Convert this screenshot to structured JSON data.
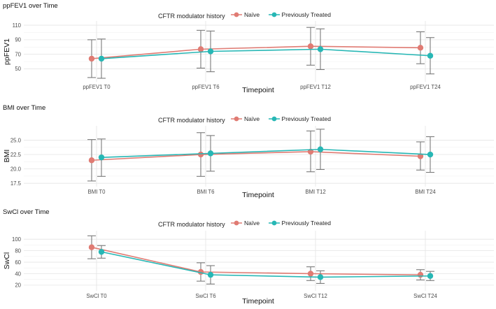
{
  "legend": {
    "title": "CFTR modulator history",
    "series": [
      {
        "name": "Naïve",
        "color": "#e07b73"
      },
      {
        "name": "Previously Treated",
        "color": "#27b7b5"
      }
    ]
  },
  "chart_data": [
    {
      "type": "line",
      "title": "ppFEV1 over Time",
      "xlabel": "Timepoint",
      "ylabel": "ppFEV1",
      "categories": [
        "ppFEV1 T0",
        "ppFEV1 T6",
        "ppFEV1 T12",
        "ppFEV1 T24"
      ],
      "ylim": [
        36,
        112
      ],
      "yticks": [
        50,
        70,
        90,
        110
      ],
      "series": [
        {
          "name": "Naïve",
          "color": "#e07b73",
          "values": [
            64,
            77,
            81,
            79
          ],
          "lower": [
            38,
            51,
            55,
            57
          ],
          "upper": [
            90,
            103,
            107,
            101
          ]
        },
        {
          "name": "Previously Treated",
          "color": "#27b7b5",
          "values": [
            64,
            74,
            77,
            68
          ],
          "lower": [
            37,
            46,
            49,
            43
          ],
          "upper": [
            91,
            102,
            105,
            93
          ]
        }
      ]
    },
    {
      "type": "line",
      "title": "BMI over Time",
      "xlabel": "Timepoint",
      "ylabel": "BMI",
      "categories": [
        "BMI T0",
        "BMI T6",
        "BMI T12",
        "BMI T24"
      ],
      "ylim": [
        17.4,
        27
      ],
      "yticks": [
        17.5,
        20.0,
        22.5,
        25.0
      ],
      "series": [
        {
          "name": "Naïve",
          "color": "#e07b73",
          "values": [
            21.5,
            22.5,
            23.0,
            22.2
          ],
          "lower": [
            17.9,
            18.7,
            19.5,
            19.8
          ],
          "upper": [
            25.1,
            26.3,
            26.6,
            24.7
          ]
        },
        {
          "name": "Previously Treated",
          "color": "#27b7b5",
          "values": [
            22.0,
            22.7,
            23.4,
            22.5
          ],
          "lower": [
            18.7,
            19.6,
            19.9,
            19.4
          ],
          "upper": [
            25.2,
            25.8,
            26.9,
            25.6
          ]
        }
      ]
    },
    {
      "type": "line",
      "title": "SwCl over Time",
      "xlabel": "Timepoint",
      "ylabel": "SwCl",
      "categories": [
        "SwCl T0",
        "SwCl T6",
        "SwCl T12",
        "SwCl T24"
      ],
      "ylim": [
        15,
        110
      ],
      "yticks": [
        20,
        40,
        60,
        80,
        100
      ],
      "series": [
        {
          "name": "Naïve",
          "color": "#e07b73",
          "values": [
            86,
            43,
            40,
            38
          ],
          "lower": [
            66,
            27,
            28,
            29
          ],
          "upper": [
            106,
            59,
            52,
            47
          ]
        },
        {
          "name": "Previously Treated",
          "color": "#27b7b5",
          "values": [
            78,
            38,
            34,
            36
          ],
          "lower": [
            67,
            22,
            23,
            28
          ],
          "upper": [
            89,
            54,
            45,
            44
          ]
        }
      ]
    }
  ]
}
